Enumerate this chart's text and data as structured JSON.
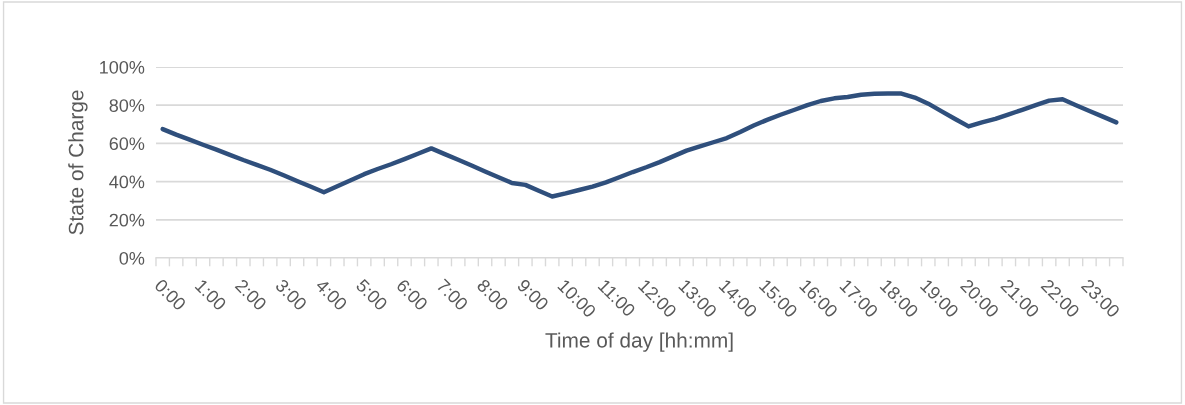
{
  "chart_data": {
    "type": "line",
    "categories": [
      "0:00",
      null,
      null,
      "1:00",
      null,
      null,
      "2:00",
      null,
      null,
      "3:00",
      null,
      null,
      "4:00",
      null,
      null,
      "5:00",
      null,
      null,
      "6:00",
      null,
      null,
      "7:00",
      null,
      null,
      "8:00",
      null,
      null,
      "9:00",
      null,
      null,
      "10:00",
      null,
      null,
      "11:00",
      null,
      null,
      "12:00",
      null,
      null,
      "13:00",
      null,
      null,
      "14:00",
      null,
      null,
      "15:00",
      null,
      null,
      "16:00",
      null,
      null,
      "17:00",
      null,
      null,
      "18:00",
      null,
      null,
      "19:00",
      null,
      null,
      "20:00",
      null,
      null,
      "21:00",
      null,
      null,
      "22:00",
      null,
      null,
      "23:00",
      null,
      null
    ],
    "series": [
      {
        "color": "#2f4f7c",
        "values": [
          67.5,
          64.6,
          62.0,
          59.3,
          56.7,
          54.0,
          51.3,
          48.8,
          46.2,
          43.3,
          40.3,
          37.4,
          34.4,
          37.6,
          40.7,
          43.9,
          46.6,
          49.1,
          51.8,
          54.6,
          57.4,
          54.4,
          51.4,
          48.4,
          45.3,
          42.3,
          39.3,
          38.3,
          35.2,
          32.2,
          33.8,
          35.6,
          37.4,
          39.6,
          42.3,
          45.0,
          47.5,
          50.2,
          53.2,
          56.2,
          58.4,
          60.6,
          62.8,
          66.0,
          69.4,
          72.3,
          75.0,
          77.5,
          80.0,
          82.2,
          83.6,
          84.3,
          85.5,
          86.0,
          86.1,
          86.1,
          84.0,
          80.8,
          76.8,
          72.8,
          68.9,
          71.0,
          72.8,
          75.2,
          77.6,
          80.0,
          82.4,
          83.1,
          80.0,
          77.0,
          74.0,
          71.0
        ]
      }
    ],
    "xlabel": "Time of day [hh:mm]",
    "ylabel": "State of Charge",
    "ylim": [
      0,
      100
    ],
    "yticks": [
      {
        "value": 0,
        "label": "0%"
      },
      {
        "value": 20,
        "label": "20%"
      },
      {
        "value": 40,
        "label": "40%"
      },
      {
        "value": 60,
        "label": "60%"
      },
      {
        "value": 80,
        "label": "80%"
      },
      {
        "value": 100,
        "label": "100%"
      }
    ],
    "grid": "y",
    "legend": false,
    "marker": "none",
    "line_style": "solid"
  }
}
